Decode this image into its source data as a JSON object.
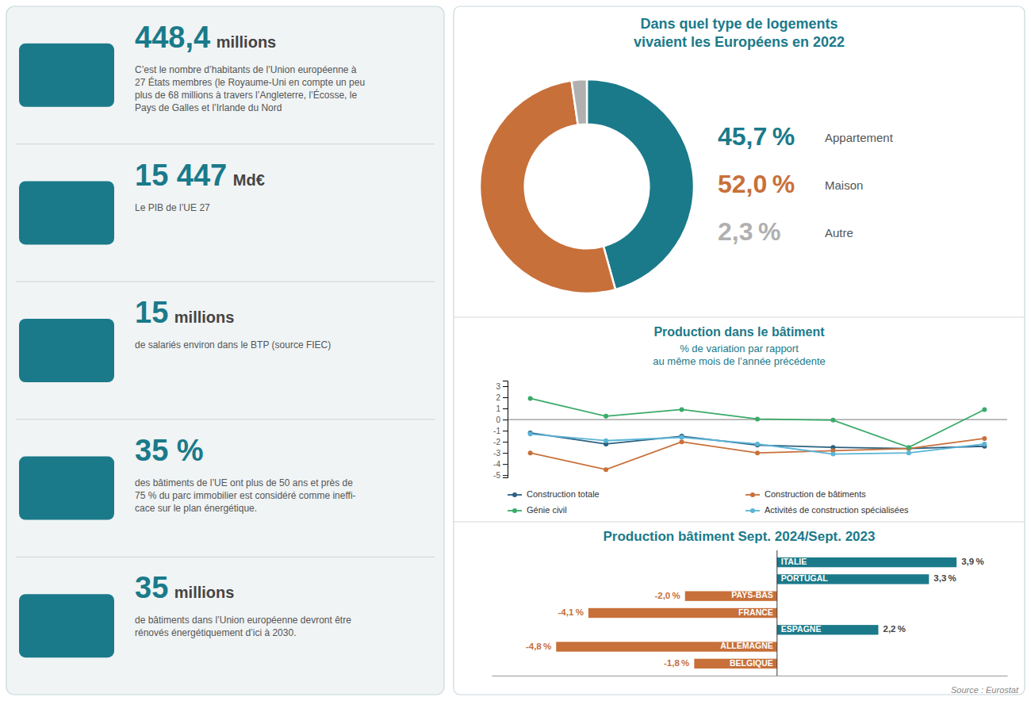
{
  "chart_data": [
    {
      "type": "stats",
      "annotations": [
        [
          "448,4",
          " millions",
          "C’est le nombre d’habitants de l’Union européenne à\n27 États membres (le Royaume-Uni en compte un peu\nplus de 68 millions à travers l’Angleterre, l’Écosse, le\nPays de Galles et l’Irlande du Nord"
        ],
        [
          "15 447",
          " Md€",
          "Le PIB de l’UE 27"
        ],
        [
          "15",
          " millions",
          "de salariés environ dans le BTP (source FIEC)"
        ],
        [
          "35 %",
          "des bâtiments de l’UE ont plus de 50 ans et près de\n75 % du parc immobilier est considéré comme ineffi-\ncace sur le plan énergétique."
        ],
        [
          "35",
          " millions",
          "de bâtiments dans l’Union européenne devront être\nrénovés énergétiquement d’ici à 2030."
        ]
      ]
    },
    {
      "type": "donut",
      "title": "Dans quel type de logements\nvivaient les Européens en 2022",
      "categories": [
        "Appartement",
        "Maison",
        "Autre"
      ],
      "values": [
        45.7,
        52.0,
        2.3
      ],
      "value_labels": [
        "45,7 %",
        "52,0 %",
        "2,3 %"
      ],
      "colors": [
        "#1a7a8a",
        "#c8703a",
        "#b0b0b0"
      ],
      "data_labels": true
    },
    {
      "type": "line",
      "title": "Production dans le bâtiment",
      "subtitle": "% de variation par rapport\nau même mois de l’année précédente",
      "categories": [
        null,
        null,
        null,
        null,
        null,
        null,
        null
      ],
      "series": [
        {
          "name": "Construction totale",
          "color": "#2a6080",
          "values": [
            -1.2,
            -2.2,
            -1.5,
            -2.3,
            -2.5,
            -2.6,
            -2.4
          ]
        },
        {
          "name": "Construction de bâtiments",
          "color": "#c8703a",
          "values": [
            -3.0,
            -4.5,
            -2.0,
            -3.0,
            -2.8,
            -2.6,
            -1.7
          ]
        },
        {
          "name": "Génie civil",
          "color": "#3aaa6a",
          "values": [
            1.9,
            0.3,
            0.9,
            0.05,
            -0.05,
            -2.5,
            0.9
          ]
        },
        {
          "name": "Activités de construction spécialisées",
          "color": "#5ab4d6",
          "values": [
            -1.3,
            -1.9,
            -1.6,
            -2.2,
            -3.1,
            -3.0,
            -2.2
          ]
        }
      ],
      "ylim": [
        -5.2,
        3.5
      ],
      "yticks": [
        -5,
        -4,
        -3,
        -2,
        -1,
        0,
        1,
        2,
        3
      ],
      "grid": false,
      "legend": "bottom",
      "marker": "circle",
      "tick_labels": "y"
    },
    {
      "type": "bar",
      "orientation": "horizontal",
      "title": "Production bâtiment Sept. 2024/Sept. 2023",
      "categories": [
        "ITALIE",
        "PORTUGAL",
        "PAYS-BAS",
        "FRANCE",
        "ESPAGNE",
        "ALLEMAGNE",
        "BELGIQUE"
      ],
      "values": [
        3.9,
        3.3,
        -2.0,
        -4.1,
        2.2,
        -4.8,
        -1.8
      ],
      "value_labels": [
        "3,9 %",
        "3,3 %",
        "-2,0 %",
        "-4,1 %",
        "2,2 %",
        "-4,8 %",
        "-1,8 %"
      ],
      "colors": [
        "#1a7a8a",
        "#1a7a8a",
        "#c8703a",
        "#c8703a",
        "#1a7a8a",
        "#c8703a",
        "#c8703a"
      ],
      "data_labels": true,
      "xlim": [
        -6.2,
        5.0
      ],
      "tick_labels": false,
      "annotations": [
        "Source : Eurostat"
      ]
    }
  ]
}
